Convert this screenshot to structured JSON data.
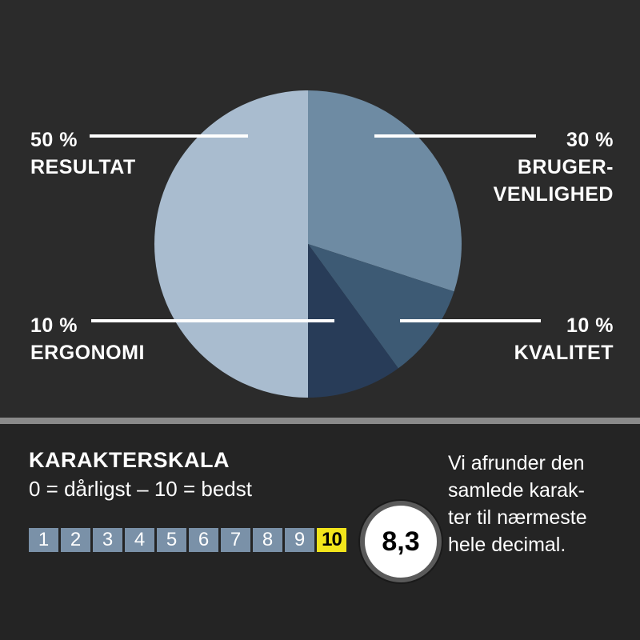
{
  "chart_data": {
    "type": "pie",
    "slices": [
      {
        "label": "BRUGER-\nVENLIGHED",
        "pct_label": "30 %",
        "value": 30,
        "color": "#6e8ba3"
      },
      {
        "label": "KVALITET",
        "pct_label": "10 %",
        "value": 10,
        "color": "#3d5a74"
      },
      {
        "label": "ERGONOMI",
        "pct_label": "10 %",
        "value": 10,
        "color": "#283c58"
      },
      {
        "label": "RESULTAT",
        "pct_label": "50 %",
        "value": 50,
        "color": "#a9bccf"
      }
    ],
    "start_angle_deg": 0,
    "direction": "clockwise"
  },
  "scale": {
    "title": "KARAKTERSKALA",
    "subtitle": "0 = dårligst – 10 = bedst",
    "numbers": [
      "1",
      "2",
      "3",
      "4",
      "5",
      "6",
      "7",
      "8",
      "9",
      "10"
    ],
    "highlight": "10",
    "box_color": "#7a91a8",
    "highlight_color": "#f2e51b"
  },
  "score": "8,3",
  "note": "Vi afrunder den\nsamlede karak-\nter til nærmeste\nhele decimal."
}
